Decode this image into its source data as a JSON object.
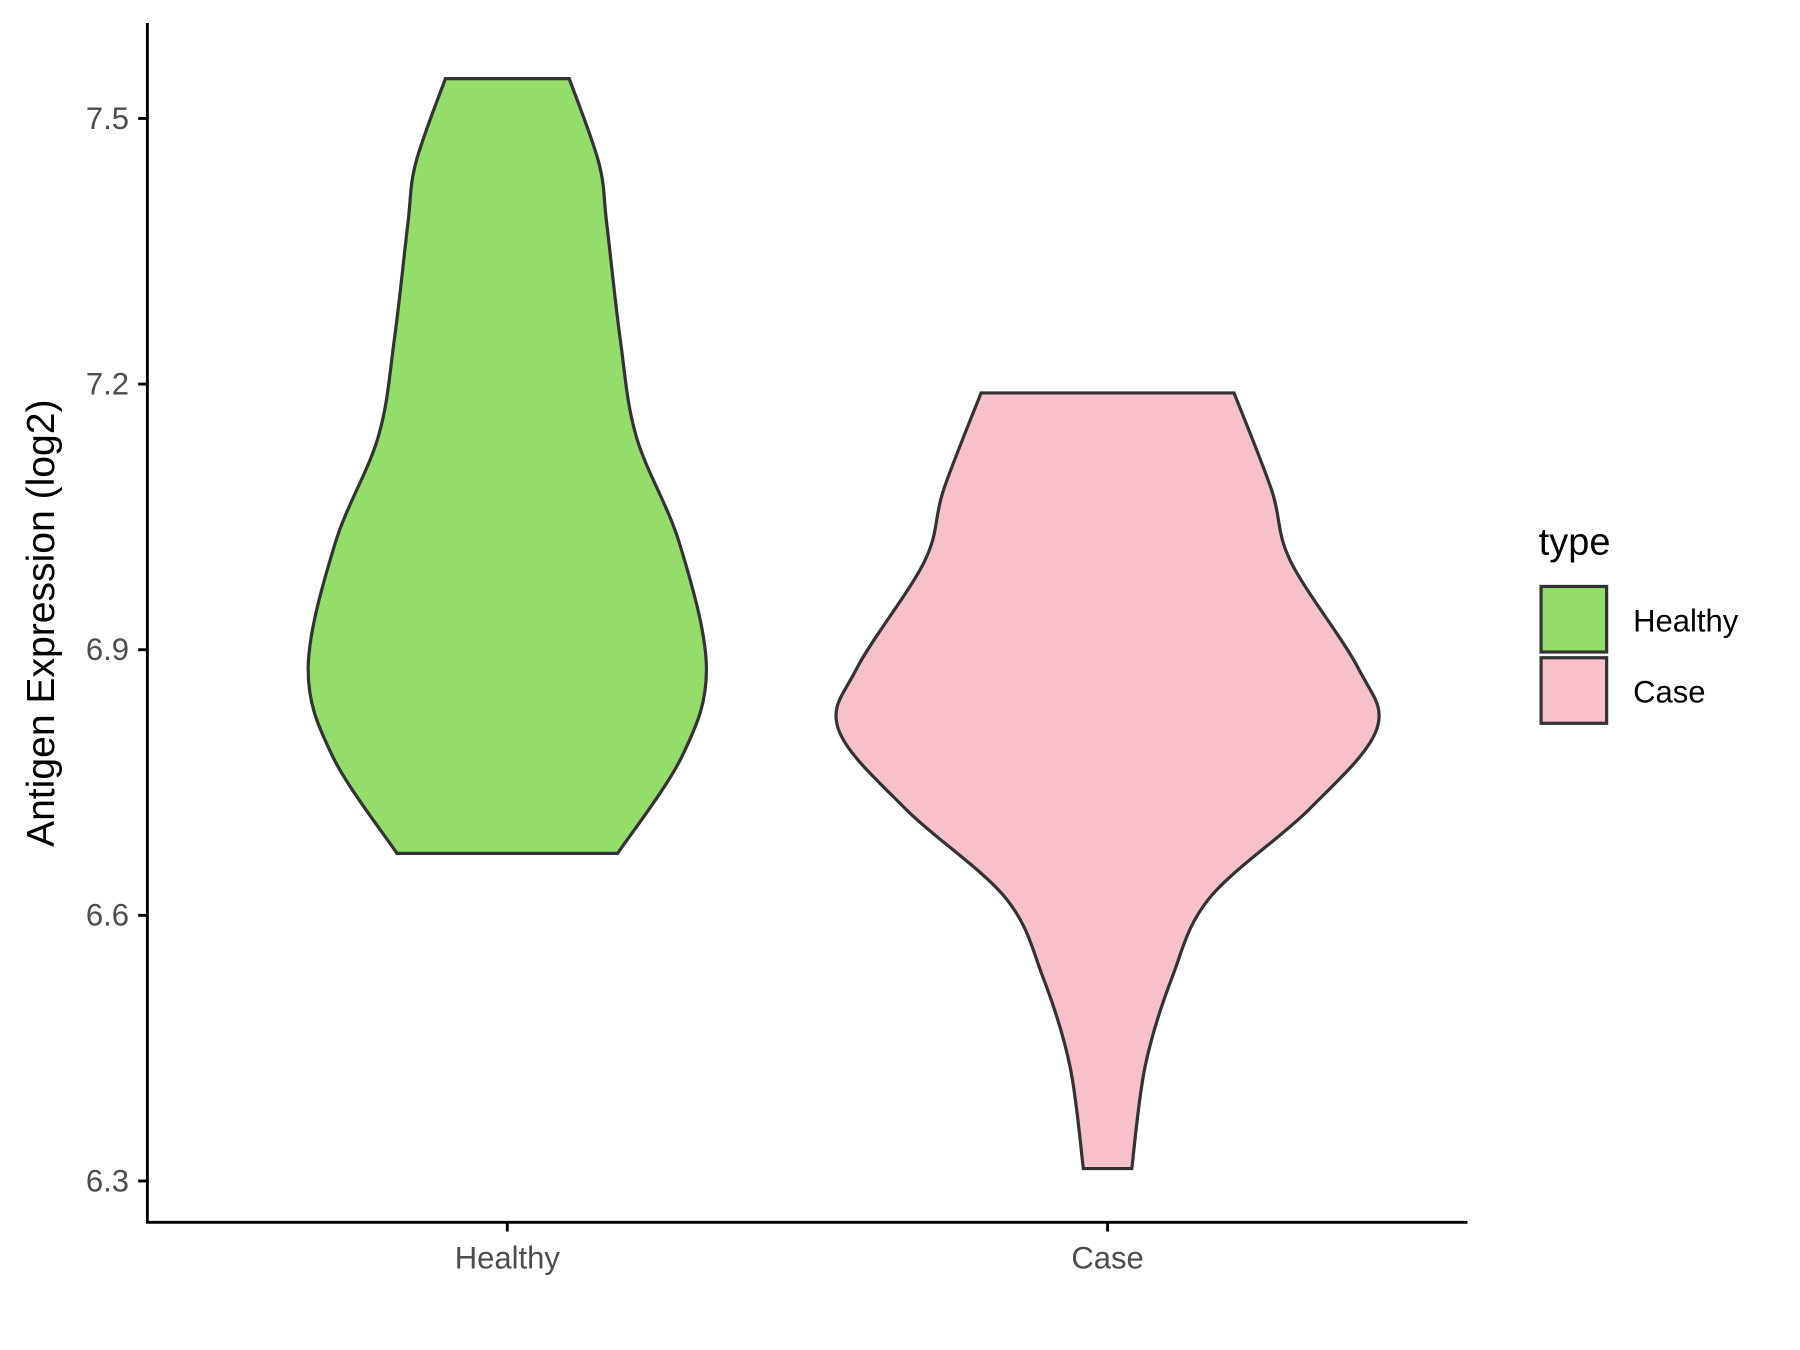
{
  "chart_data": {
    "type": "violin",
    "title": "",
    "xlabel": "",
    "ylabel": "Antigen Expression (log2)",
    "ylim": [
      6.25,
      7.62
    ],
    "yticks": [
      "6.3",
      "6.6",
      "6.9",
      "7.2",
      "7.5"
    ],
    "categories": [
      "Healthy",
      "Case"
    ],
    "grid": false,
    "legend": {
      "title": "type",
      "position": "right",
      "entries": [
        "Healthy",
        "Case"
      ]
    },
    "series": [
      {
        "name": "Healthy",
        "color": "#93dd6a",
        "range": [
          6.67,
          7.545
        ],
        "density_profile": [
          [
            7.545,
            0.23
          ],
          [
            7.45,
            0.34
          ],
          [
            7.38,
            0.37
          ],
          [
            7.25,
            0.42
          ],
          [
            7.14,
            0.48
          ],
          [
            7.02,
            0.64
          ],
          [
            6.88,
            0.74
          ],
          [
            6.78,
            0.65
          ],
          [
            6.67,
            0.41
          ]
        ]
      },
      {
        "name": "Case",
        "color": "#f7c0cb",
        "range": [
          6.314,
          7.19
        ],
        "density_profile": [
          [
            7.19,
            0.47
          ],
          [
            7.08,
            0.61
          ],
          [
            7.0,
            0.68
          ],
          [
            6.88,
            0.93
          ],
          [
            6.81,
            1.0
          ],
          [
            6.72,
            0.75
          ],
          [
            6.62,
            0.38
          ],
          [
            6.53,
            0.24
          ],
          [
            6.43,
            0.14
          ],
          [
            6.314,
            0.09
          ]
        ]
      }
    ]
  }
}
